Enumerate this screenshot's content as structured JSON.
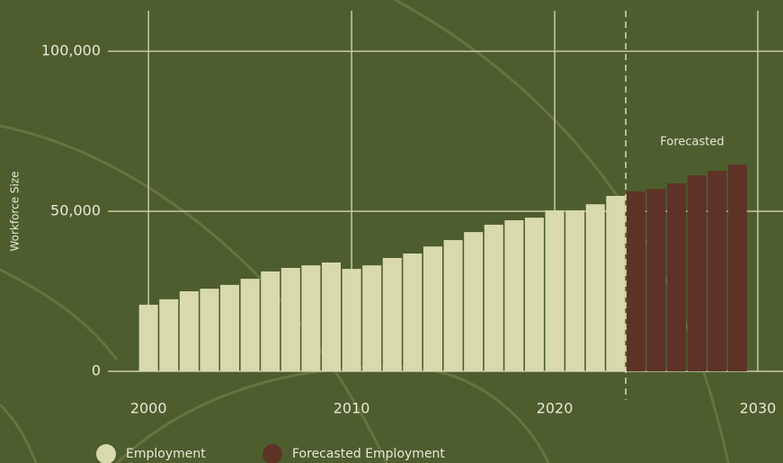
{
  "chart_data": {
    "type": "bar",
    "y_label": "Workforce Size",
    "annotation": "Forecasted",
    "x": [
      2000,
      2001,
      2002,
      2003,
      2004,
      2005,
      2006,
      2007,
      2008,
      2009,
      2010,
      2011,
      2012,
      2013,
      2014,
      2015,
      2016,
      2017,
      2018,
      2019,
      2020,
      2021,
      2022,
      2023,
      2024,
      2025,
      2026,
      2027,
      2028,
      2029
    ],
    "series": [
      {
        "name": "Employment",
        "color": "#d8d9ad",
        "values": [
          20800,
          22500,
          25000,
          25800,
          27000,
          28900,
          31200,
          32300,
          33100,
          34000,
          32000,
          33100,
          35400,
          36800,
          39000,
          41000,
          43500,
          45800,
          47200,
          48000,
          50300,
          50300,
          52200,
          54800,
          null,
          null,
          null,
          null,
          null,
          null
        ]
      },
      {
        "name": "Forecasted Employment",
        "color": "#5e3327",
        "values": [
          null,
          null,
          null,
          null,
          null,
          null,
          null,
          null,
          null,
          null,
          null,
          null,
          null,
          null,
          null,
          null,
          null,
          null,
          null,
          null,
          null,
          null,
          null,
          null,
          56200,
          57000,
          58700,
          61200,
          62600,
          64600
        ]
      }
    ],
    "xlim": [
      1998,
      2031.24
    ],
    "xticks": [
      2000,
      2010,
      2020,
      2030
    ],
    "ylim": [
      0,
      112640
    ],
    "yticks": [
      0,
      {
        "value": 50000,
        "label": "50,000"
      },
      {
        "value": 100000,
        "label": "100,000"
      }
    ],
    "grid": true
  }
}
